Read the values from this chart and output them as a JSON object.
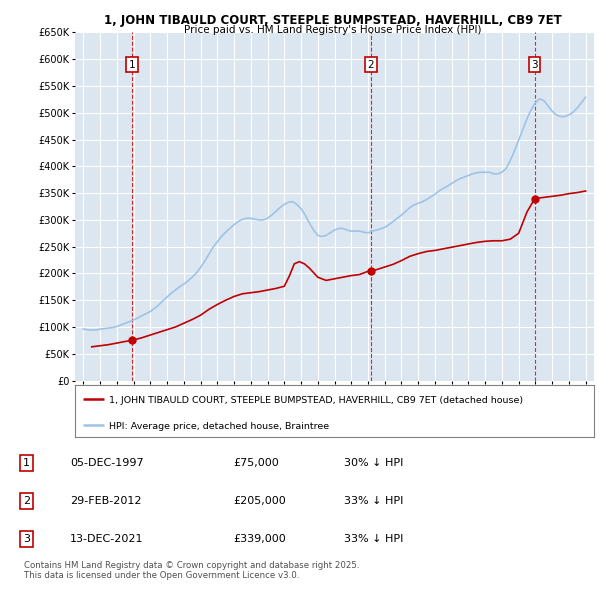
{
  "title": "1, JOHN TIBAULD COURT, STEEPLE BUMPSTEAD, HAVERHILL, CB9 7ET",
  "subtitle": "Price paid vs. HM Land Registry's House Price Index (HPI)",
  "legend_label_red": "1, JOHN TIBAULD COURT, STEEPLE BUMPSTEAD, HAVERHILL, CB9 7ET (detached house)",
  "legend_label_blue": "HPI: Average price, detached house, Braintree",
  "footer": "Contains HM Land Registry data © Crown copyright and database right 2025.\nThis data is licensed under the Open Government Licence v3.0.",
  "sales": [
    {
      "num": 1,
      "date": "05-DEC-1997",
      "price": 75000,
      "hpi_diff": "30% ↓ HPI",
      "year": 1997.92
    },
    {
      "num": 2,
      "date": "29-FEB-2012",
      "price": 205000,
      "hpi_diff": "33% ↓ HPI",
      "year": 2012.17
    },
    {
      "num": 3,
      "date": "13-DEC-2021",
      "price": 339000,
      "hpi_diff": "33% ↓ HPI",
      "year": 2021.95
    }
  ],
  "ylim": [
    0,
    650000
  ],
  "yticks": [
    0,
    50000,
    100000,
    150000,
    200000,
    250000,
    300000,
    350000,
    400000,
    450000,
    500000,
    550000,
    600000,
    650000
  ],
  "xlim_start": 1994.5,
  "xlim_end": 2025.5,
  "bg_color": "#ffffff",
  "plot_bg_color": "#dce6f1",
  "grid_color": "#ffffff",
  "red_color": "#c00000",
  "blue_color": "#9dc3e6",
  "hpi_data_years": [
    1995.0,
    1995.25,
    1995.5,
    1995.75,
    1996.0,
    1996.25,
    1996.5,
    1996.75,
    1997.0,
    1997.25,
    1997.5,
    1997.75,
    1998.0,
    1998.25,
    1998.5,
    1998.75,
    1999.0,
    1999.25,
    1999.5,
    1999.75,
    2000.0,
    2000.25,
    2000.5,
    2000.75,
    2001.0,
    2001.25,
    2001.5,
    2001.75,
    2002.0,
    2002.25,
    2002.5,
    2002.75,
    2003.0,
    2003.25,
    2003.5,
    2003.75,
    2004.0,
    2004.25,
    2004.5,
    2004.75,
    2005.0,
    2005.25,
    2005.5,
    2005.75,
    2006.0,
    2006.25,
    2006.5,
    2006.75,
    2007.0,
    2007.25,
    2007.5,
    2007.75,
    2008.0,
    2008.25,
    2008.5,
    2008.75,
    2009.0,
    2009.25,
    2009.5,
    2009.75,
    2010.0,
    2010.25,
    2010.5,
    2010.75,
    2011.0,
    2011.25,
    2011.5,
    2011.75,
    2012.0,
    2012.25,
    2012.5,
    2012.75,
    2013.0,
    2013.25,
    2013.5,
    2013.75,
    2014.0,
    2014.25,
    2014.5,
    2014.75,
    2015.0,
    2015.25,
    2015.5,
    2015.75,
    2016.0,
    2016.25,
    2016.5,
    2016.75,
    2017.0,
    2017.25,
    2017.5,
    2017.75,
    2018.0,
    2018.25,
    2018.5,
    2018.75,
    2019.0,
    2019.25,
    2019.5,
    2019.75,
    2020.0,
    2020.25,
    2020.5,
    2020.75,
    2021.0,
    2021.25,
    2021.5,
    2021.75,
    2022.0,
    2022.25,
    2022.5,
    2022.75,
    2023.0,
    2023.25,
    2023.5,
    2023.75,
    2024.0,
    2024.25,
    2024.5,
    2024.75,
    2025.0
  ],
  "hpi_data_values": [
    96000,
    95000,
    94000,
    94500,
    96000,
    97000,
    98000,
    99000,
    101000,
    104000,
    107000,
    110000,
    113000,
    117000,
    121000,
    125000,
    129000,
    135000,
    141000,
    149000,
    156000,
    163000,
    169000,
    175000,
    180000,
    186000,
    193000,
    201000,
    211000,
    223000,
    236000,
    249000,
    259000,
    269000,
    277000,
    284000,
    291000,
    297000,
    301000,
    303000,
    303000,
    301000,
    300000,
    300000,
    303000,
    309000,
    316000,
    323000,
    329000,
    333000,
    334000,
    329000,
    321000,
    309000,
    294000,
    281000,
    271000,
    269000,
    271000,
    276000,
    281000,
    284000,
    284000,
    281000,
    279000,
    279000,
    279000,
    277000,
    276000,
    279000,
    281000,
    283000,
    286000,
    291000,
    297000,
    303000,
    309000,
    316000,
    323000,
    328000,
    331000,
    334000,
    338000,
    343000,
    348000,
    354000,
    359000,
    363000,
    368000,
    373000,
    377000,
    380000,
    383000,
    386000,
    388000,
    389000,
    389000,
    389000,
    386000,
    386000,
    389000,
    396000,
    411000,
    429000,
    449000,
    469000,
    489000,
    506000,
    519000,
    526000,
    523000,
    513000,
    503000,
    496000,
    493000,
    493000,
    496000,
    501000,
    509000,
    519000,
    529000
  ],
  "red_data_years": [
    1995.5,
    1996.0,
    1996.5,
    1997.0,
    1997.5,
    1997.92,
    1998.5,
    1999.0,
    1999.5,
    2000.0,
    2000.5,
    2001.0,
    2001.5,
    2002.0,
    2002.5,
    2003.0,
    2003.5,
    2004.0,
    2004.5,
    2005.0,
    2005.5,
    2006.0,
    2006.5,
    2007.0,
    2007.3,
    2007.6,
    2007.9,
    2008.2,
    2008.5,
    2009.0,
    2009.5,
    2010.0,
    2010.5,
    2011.0,
    2011.5,
    2012.0,
    2012.17,
    2012.5,
    2013.0,
    2013.5,
    2014.0,
    2014.5,
    2015.0,
    2015.5,
    2016.0,
    2016.5,
    2017.0,
    2017.5,
    2018.0,
    2018.5,
    2019.0,
    2019.5,
    2020.0,
    2020.5,
    2021.0,
    2021.5,
    2021.95,
    2022.0,
    2022.5,
    2023.0,
    2023.5,
    2024.0,
    2024.5,
    2025.0
  ],
  "red_data_values": [
    63000,
    65000,
    67000,
    70000,
    73000,
    75000,
    80000,
    85000,
    90000,
    95000,
    100000,
    107000,
    114000,
    122000,
    133000,
    142000,
    150000,
    157000,
    162000,
    164000,
    166000,
    169000,
    172000,
    176000,
    195000,
    218000,
    222000,
    218000,
    210000,
    193000,
    187000,
    190000,
    193000,
    196000,
    198000,
    204000,
    205000,
    207000,
    212000,
    217000,
    224000,
    232000,
    237000,
    241000,
    243000,
    246000,
    249000,
    252000,
    255000,
    258000,
    260000,
    261000,
    261000,
    264000,
    275000,
    315000,
    339000,
    340000,
    342000,
    344000,
    346000,
    349000,
    351000,
    354000
  ]
}
